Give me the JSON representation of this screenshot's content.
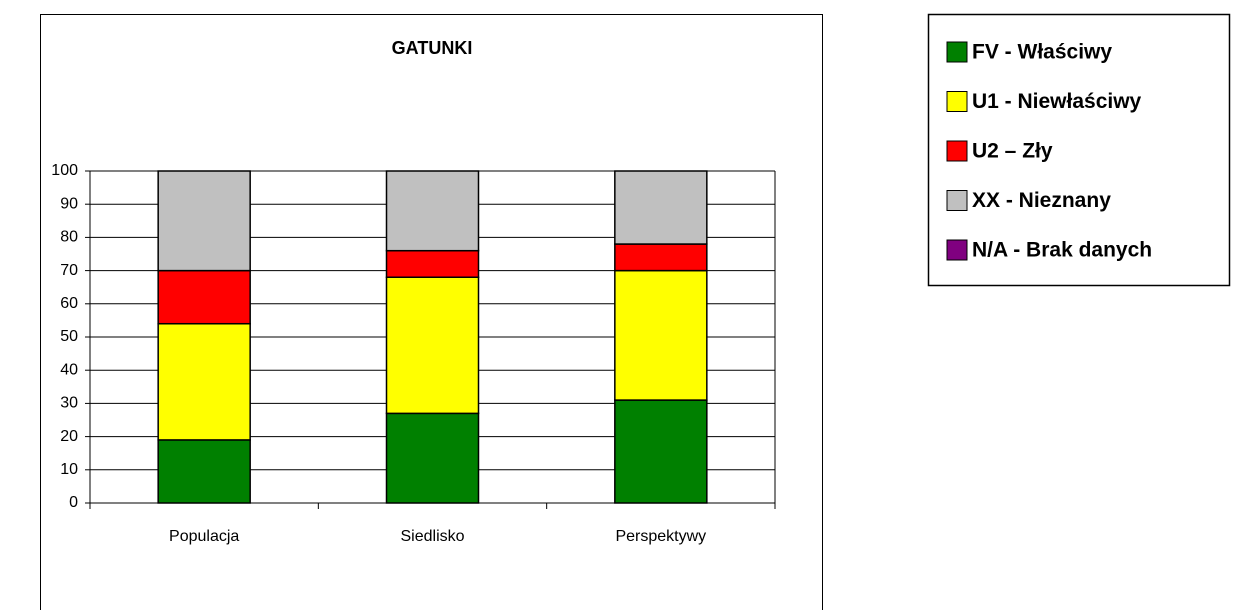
{
  "chart_data": {
    "type": "stacked_bar",
    "title": "GATUNKI",
    "categories": [
      "Populacja",
      "Siedlisko",
      "Perspektywy"
    ],
    "series": [
      {
        "name": "FV - Właściwy",
        "color": "#008000",
        "values": [
          19,
          27,
          31
        ]
      },
      {
        "name": "U1 - Niewłaściwy",
        "color": "#ffff00",
        "values": [
          35,
          41,
          39
        ]
      },
      {
        "name": "U2 – Zły",
        "color": "#ff0000",
        "values": [
          16,
          8,
          8
        ]
      },
      {
        "name": "XX - Nieznany",
        "color": "#c0c0c0",
        "values": [
          30,
          24,
          22
        ]
      },
      {
        "name": "N/A - Brak danych",
        "color": "#800080",
        "values": [
          0,
          0,
          0
        ]
      }
    ],
    "ylim": [
      0,
      100
    ],
    "yticks": [
      0,
      10,
      20,
      30,
      40,
      50,
      60,
      70,
      80,
      90,
      100
    ],
    "grid": true
  }
}
